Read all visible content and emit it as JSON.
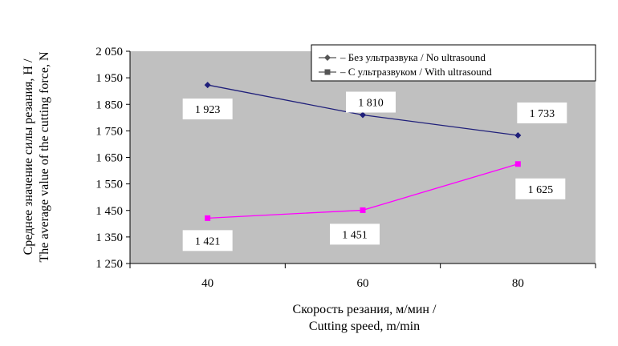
{
  "chart_data": {
    "type": "line",
    "categories": [
      "40",
      "60",
      "80"
    ],
    "y_ticks": [
      "2 050",
      "1 950",
      "1 850",
      "1 750",
      "1 650",
      "1 550",
      "1 450",
      "1 350",
      "1 250"
    ],
    "ylim": [
      1250,
      2050
    ],
    "ylabel_lines": [
      "Среднее значение силы резания, Н /",
      "The average value of the cutting force, N"
    ],
    "xlabel_lines": [
      "Скорость резания, м/мин /",
      "Cutting speed, m/min"
    ],
    "grid": false,
    "legend_position": "top-right",
    "series": [
      {
        "name": "– Без ультразвука / No ultrasound",
        "values": [
          1923,
          1810,
          1733
        ],
        "labels": [
          "1 923",
          "1 810",
          "1 733"
        ],
        "color": "#1f1f7a",
        "marker": "diamond"
      },
      {
        "name": "– С ультразвуком / With ultrasound",
        "values": [
          1421,
          1451,
          1625
        ],
        "labels": [
          "1 421",
          "1 451",
          "1 625"
        ],
        "color": "#ff00ff",
        "marker": "square"
      }
    ],
    "colors": {
      "plot_background": "#c0c0c0",
      "axis": "#000000"
    }
  }
}
